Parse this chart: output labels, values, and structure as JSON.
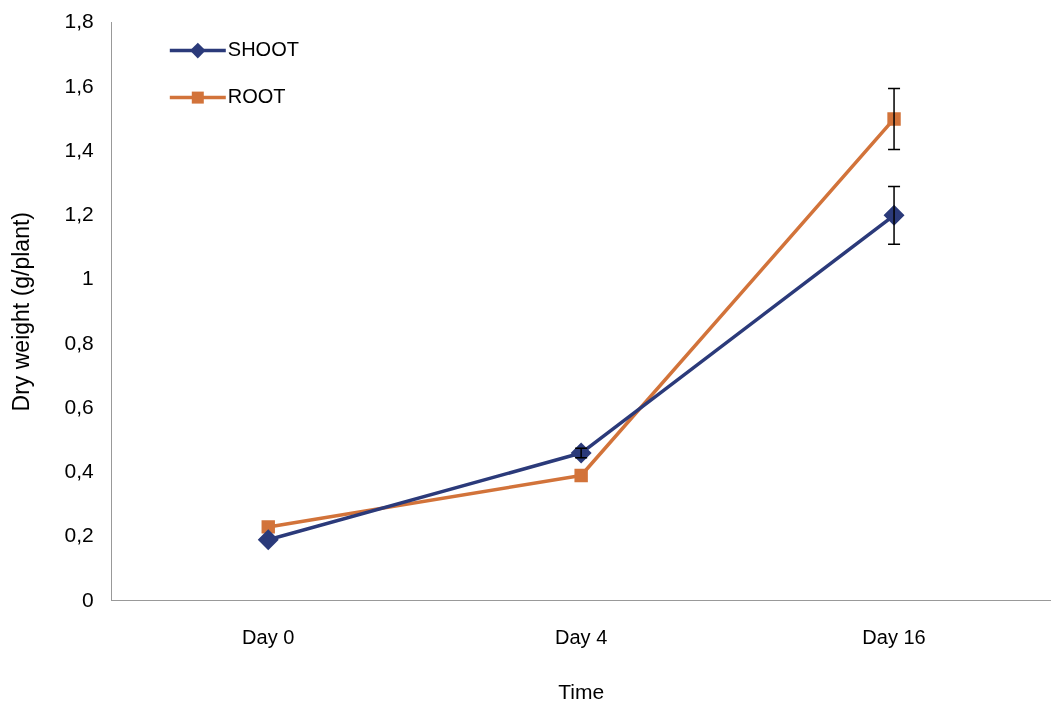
{
  "chart_data": {
    "type": "line",
    "xlabel": "Time",
    "ylabel": "Dry weight (g/plant)",
    "categories": [
      "Day 0",
      "Day 4",
      "Day 16"
    ],
    "series": [
      {
        "name": "SHOOT",
        "color": "#2b3a7a",
        "marker": "diamond",
        "values": [
          0.19,
          0.46,
          1.2
        ],
        "errors": [
          null,
          0.015,
          0.09
        ]
      },
      {
        "name": "ROOT",
        "color": "#d2733a",
        "marker": "square",
        "values": [
          0.23,
          0.39,
          1.5
        ],
        "errors": [
          null,
          null,
          0.095
        ]
      }
    ],
    "ylim": [
      0,
      1.8
    ],
    "yticks": [
      0,
      {
        "value": 0.2,
        "label": "0,2"
      },
      {
        "value": 0.4,
        "label": "0,4"
      },
      {
        "value": 0.6,
        "label": "0,6"
      },
      {
        "value": 0.8,
        "label": "0,8"
      },
      1,
      {
        "value": 1.2,
        "label": "1,2"
      },
      {
        "value": 1.4,
        "label": "1,4"
      },
      {
        "value": 1.6,
        "label": "1,6"
      },
      {
        "value": 1.8,
        "label": "1,8"
      }
    ],
    "grid": false,
    "legend": "top left",
    "line_style": "solid"
  }
}
